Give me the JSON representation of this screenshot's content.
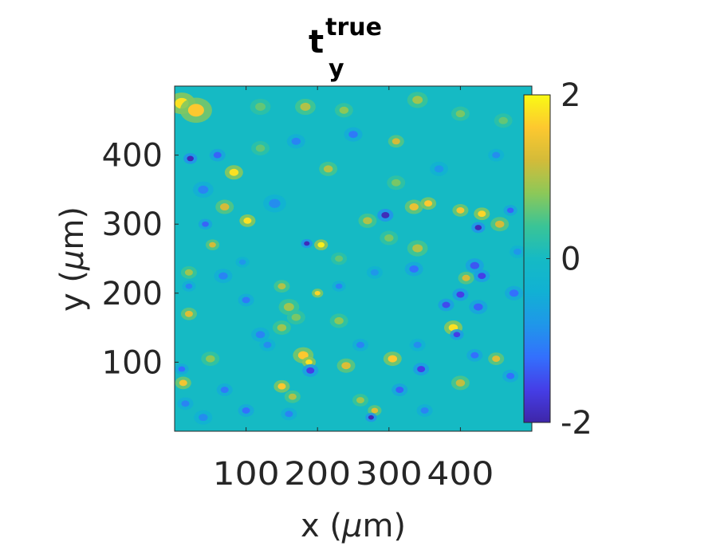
{
  "chart_data": {
    "type": "heatmap",
    "title": {
      "base": "t",
      "superscript": "true",
      "subscript": "y"
    },
    "xlabel": {
      "prefix": "x (",
      "greek": "μ",
      "suffix": "m)"
    },
    "ylabel": {
      "prefix": "y (",
      "greek": "μ",
      "suffix": "m)"
    },
    "xlim": [
      0,
      500
    ],
    "ylim": [
      0,
      500
    ],
    "xticks": [
      100,
      200,
      300,
      400
    ],
    "xtick_labels": [
      "100",
      "200",
      "300",
      "400"
    ],
    "yticks": [
      100,
      200,
      300,
      400
    ],
    "ytick_labels": [
      "100",
      "200",
      "300",
      "400"
    ],
    "colorbar": {
      "limits": [
        -2,
        2
      ],
      "ticks": [
        -2,
        0,
        2
      ],
      "tick_labels": [
        "-2",
        "0",
        "2"
      ],
      "colormap": "parula"
    },
    "background_value": 0,
    "features": [
      {
        "x": 10,
        "y": 475,
        "r": 12,
        "v": 1.8
      },
      {
        "x": 30,
        "y": 465,
        "r": 14,
        "v": 1.6
      },
      {
        "x": 22,
        "y": 395,
        "r": 6,
        "v": -1.9
      },
      {
        "x": 60,
        "y": 400,
        "r": 7,
        "v": -1.3
      },
      {
        "x": 83,
        "y": 375,
        "r": 8,
        "v": 1.8
      },
      {
        "x": 120,
        "y": 470,
        "r": 9,
        "v": 0.6
      },
      {
        "x": 183,
        "y": 470,
        "r": 9,
        "v": 1.0
      },
      {
        "x": 237,
        "y": 465,
        "r": 8,
        "v": 0.8
      },
      {
        "x": 340,
        "y": 480,
        "r": 9,
        "v": 0.9
      },
      {
        "x": 310,
        "y": 420,
        "r": 7,
        "v": 1.2
      },
      {
        "x": 400,
        "y": 460,
        "r": 8,
        "v": 0.7
      },
      {
        "x": 250,
        "y": 430,
        "r": 8,
        "v": -1.1
      },
      {
        "x": 215,
        "y": 380,
        "r": 8,
        "v": 1.0
      },
      {
        "x": 170,
        "y": 420,
        "r": 8,
        "v": -1.0
      },
      {
        "x": 40,
        "y": 350,
        "r": 9,
        "v": -1.0
      },
      {
        "x": 70,
        "y": 325,
        "r": 8,
        "v": 1.2
      },
      {
        "x": 102,
        "y": 305,
        "r": 7,
        "v": 1.8
      },
      {
        "x": 140,
        "y": 330,
        "r": 10,
        "v": -0.9
      },
      {
        "x": 53,
        "y": 270,
        "r": 6,
        "v": 1.2
      },
      {
        "x": 43,
        "y": 300,
        "r": 6,
        "v": -1.3
      },
      {
        "x": 205,
        "y": 270,
        "r": 6,
        "v": 1.9
      },
      {
        "x": 185,
        "y": 272,
        "r": 5,
        "v": -1.9
      },
      {
        "x": 270,
        "y": 305,
        "r": 8,
        "v": 1.0
      },
      {
        "x": 295,
        "y": 313,
        "r": 7,
        "v": -1.9
      },
      {
        "x": 335,
        "y": 325,
        "r": 8,
        "v": 1.4
      },
      {
        "x": 355,
        "y": 330,
        "r": 7,
        "v": 1.6
      },
      {
        "x": 400,
        "y": 320,
        "r": 7,
        "v": 1.5
      },
      {
        "x": 425,
        "y": 295,
        "r": 6,
        "v": -1.9
      },
      {
        "x": 430,
        "y": 315,
        "r": 7,
        "v": 1.7
      },
      {
        "x": 455,
        "y": 300,
        "r": 8,
        "v": 1.2
      },
      {
        "x": 470,
        "y": 320,
        "r": 6,
        "v": -1.3
      },
      {
        "x": 340,
        "y": 265,
        "r": 9,
        "v": 1.0
      },
      {
        "x": 335,
        "y": 235,
        "r": 8,
        "v": -1.2
      },
      {
        "x": 420,
        "y": 240,
        "r": 8,
        "v": -1.4
      },
      {
        "x": 430,
        "y": 225,
        "r": 7,
        "v": -1.6
      },
      {
        "x": 408,
        "y": 222,
        "r": 7,
        "v": 1.2
      },
      {
        "x": 400,
        "y": 198,
        "r": 7,
        "v": -1.6
      },
      {
        "x": 380,
        "y": 183,
        "r": 7,
        "v": -1.5
      },
      {
        "x": 425,
        "y": 180,
        "r": 8,
        "v": -1.3
      },
      {
        "x": 475,
        "y": 200,
        "r": 8,
        "v": -1.2
      },
      {
        "x": 390,
        "y": 150,
        "r": 8,
        "v": 1.8
      },
      {
        "x": 395,
        "y": 140,
        "r": 6,
        "v": -1.6
      },
      {
        "x": 20,
        "y": 230,
        "r": 7,
        "v": 0.9
      },
      {
        "x": 20,
        "y": 210,
        "r": 6,
        "v": -1.0
      },
      {
        "x": 20,
        "y": 170,
        "r": 7,
        "v": 1.3
      },
      {
        "x": 68,
        "y": 225,
        "r": 8,
        "v": -1.0
      },
      {
        "x": 100,
        "y": 190,
        "r": 7,
        "v": -1.1
      },
      {
        "x": 150,
        "y": 210,
        "r": 7,
        "v": 1.0
      },
      {
        "x": 200,
        "y": 200,
        "r": 5,
        "v": 1.7
      },
      {
        "x": 230,
        "y": 210,
        "r": 6,
        "v": -1.0
      },
      {
        "x": 160,
        "y": 180,
        "r": 9,
        "v": 0.9
      },
      {
        "x": 170,
        "y": 165,
        "r": 8,
        "v": 0.7
      },
      {
        "x": 150,
        "y": 150,
        "r": 8,
        "v": 0.9
      },
      {
        "x": 120,
        "y": 140,
        "r": 8,
        "v": -1.0
      },
      {
        "x": 130,
        "y": 125,
        "r": 7,
        "v": -0.9
      },
      {
        "x": 180,
        "y": 110,
        "r": 9,
        "v": 1.6
      },
      {
        "x": 188,
        "y": 100,
        "r": 6,
        "v": 1.8
      },
      {
        "x": 190,
        "y": 88,
        "r": 7,
        "v": -1.6
      },
      {
        "x": 240,
        "y": 95,
        "r": 8,
        "v": 1.3
      },
      {
        "x": 260,
        "y": 125,
        "r": 7,
        "v": -1.0
      },
      {
        "x": 305,
        "y": 105,
        "r": 8,
        "v": 1.6
      },
      {
        "x": 345,
        "y": 90,
        "r": 7,
        "v": -1.6
      },
      {
        "x": 340,
        "y": 125,
        "r": 7,
        "v": -0.9
      },
      {
        "x": 315,
        "y": 60,
        "r": 7,
        "v": -1.3
      },
      {
        "x": 400,
        "y": 70,
        "r": 8,
        "v": 1.1
      },
      {
        "x": 420,
        "y": 110,
        "r": 7,
        "v": -1.2
      },
      {
        "x": 450,
        "y": 105,
        "r": 7,
        "v": 1.3
      },
      {
        "x": 470,
        "y": 80,
        "r": 7,
        "v": -1.2
      },
      {
        "x": 10,
        "y": 90,
        "r": 6,
        "v": -1.2
      },
      {
        "x": 12,
        "y": 70,
        "r": 7,
        "v": 1.5
      },
      {
        "x": 15,
        "y": 40,
        "r": 7,
        "v": -1.0
      },
      {
        "x": 50,
        "y": 105,
        "r": 8,
        "v": 0.8
      },
      {
        "x": 70,
        "y": 60,
        "r": 7,
        "v": -1.1
      },
      {
        "x": 100,
        "y": 30,
        "r": 7,
        "v": -1.2
      },
      {
        "x": 160,
        "y": 25,
        "r": 7,
        "v": -1.0
      },
      {
        "x": 150,
        "y": 65,
        "r": 7,
        "v": 1.6
      },
      {
        "x": 165,
        "y": 50,
        "r": 7,
        "v": 1.0
      },
      {
        "x": 280,
        "y": 30,
        "r": 6,
        "v": 1.3
      },
      {
        "x": 275,
        "y": 20,
        "r": 5,
        "v": -1.9
      },
      {
        "x": 260,
        "y": 45,
        "r": 7,
        "v": 0.9
      },
      {
        "x": 350,
        "y": 30,
        "r": 7,
        "v": -1.0
      },
      {
        "x": 40,
        "y": 20,
        "r": 8,
        "v": -0.9
      },
      {
        "x": 230,
        "y": 250,
        "r": 7,
        "v": 0.6
      },
      {
        "x": 280,
        "y": 230,
        "r": 7,
        "v": -0.8
      },
      {
        "x": 95,
        "y": 245,
        "r": 6,
        "v": -0.8
      },
      {
        "x": 230,
        "y": 160,
        "r": 8,
        "v": 0.8
      },
      {
        "x": 460,
        "y": 450,
        "r": 8,
        "v": 0.6
      },
      {
        "x": 450,
        "y": 400,
        "r": 7,
        "v": -0.9
      },
      {
        "x": 480,
        "y": 260,
        "r": 7,
        "v": -0.8
      },
      {
        "x": 310,
        "y": 360,
        "r": 8,
        "v": 0.7
      },
      {
        "x": 370,
        "y": 380,
        "r": 8,
        "v": -0.8
      },
      {
        "x": 120,
        "y": 410,
        "r": 8,
        "v": 0.6
      },
      {
        "x": 300,
        "y": 280,
        "r": 8,
        "v": 0.7
      }
    ]
  }
}
